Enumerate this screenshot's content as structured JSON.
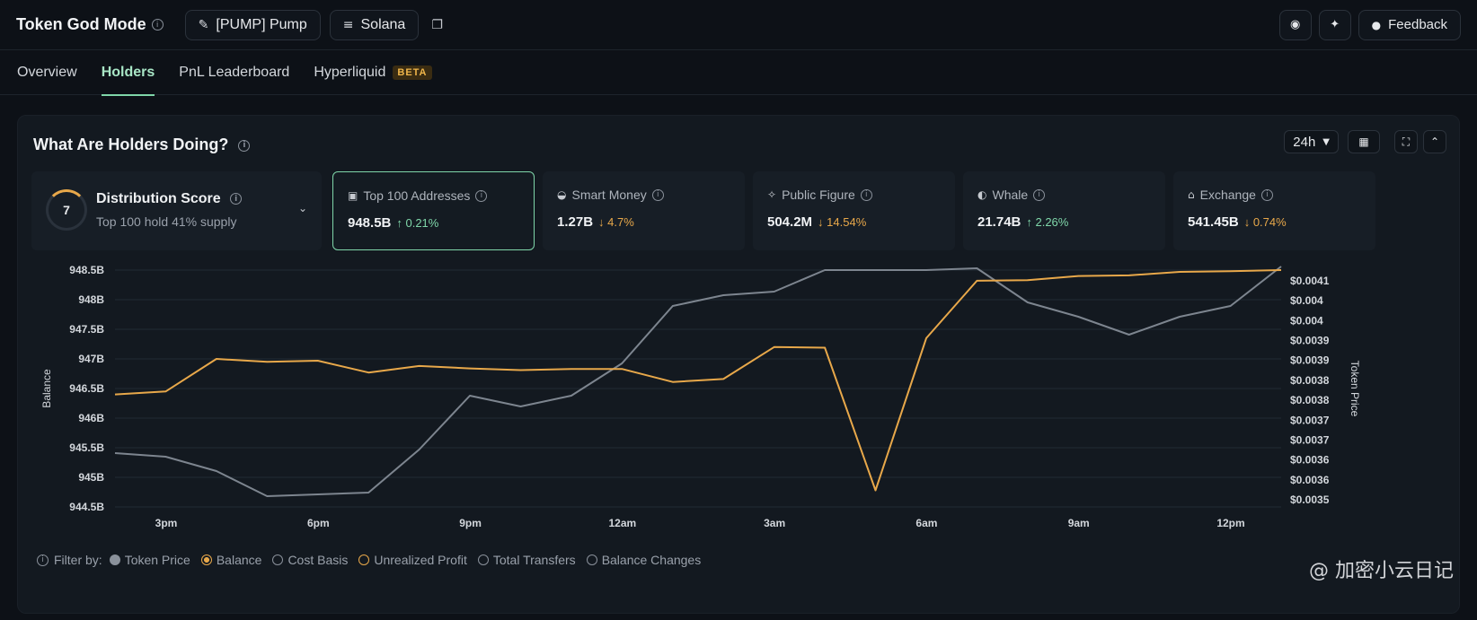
{
  "header": {
    "title": "Token God Mode",
    "token_label": "[PUMP] Pump",
    "chain_label": "Solana",
    "feedback_label": "Feedback"
  },
  "tabs": [
    {
      "label": "Overview"
    },
    {
      "label": "Holders"
    },
    {
      "label": "PnL Leaderboard"
    },
    {
      "label": "Hyperliquid",
      "badge": "BETA"
    }
  ],
  "panel": {
    "title": "What Are Holders Doing?",
    "timeframe": "24h"
  },
  "distribution": {
    "score": "7",
    "title": "Distribution Score",
    "subtitle": "Top 100 hold 41% supply"
  },
  "cards": [
    {
      "label": "Top 100 Addresses",
      "value": "948.5B",
      "change": "↑ 0.21%",
      "direction": "up",
      "icon": "wallet-icon"
    },
    {
      "label": "Smart Money",
      "value": "1.27B",
      "change": "↓ 4.7%",
      "direction": "down",
      "icon": "smart-money-icon"
    },
    {
      "label": "Public Figure",
      "value": "504.2M",
      "change": "↓ 14.54%",
      "direction": "down",
      "icon": "public-figure-icon"
    },
    {
      "label": "Whale",
      "value": "21.74B",
      "change": "↑ 2.26%",
      "direction": "up",
      "icon": "whale-icon"
    },
    {
      "label": "Exchange",
      "value": "541.45B",
      "change": "↓ 0.74%",
      "direction": "down",
      "icon": "exchange-icon"
    }
  ],
  "legend": {
    "prefix": "Filter by:",
    "items": [
      "Token Price",
      "Balance",
      "Cost Basis",
      "Unrealized Profit",
      "Total Transfers",
      "Balance Changes"
    ]
  },
  "watermark": "@ 加密小云日记",
  "chart_data": {
    "type": "line",
    "ylabel": "Balance",
    "y2label": "Token Price",
    "xticks": [
      "3pm",
      "6pm",
      "9pm",
      "12am",
      "3am",
      "6am",
      "9am",
      "12pm"
    ],
    "yticks": [
      "948.5B",
      "948B",
      "947.5B",
      "947B",
      "946.5B",
      "946B",
      "945.5B",
      "945B",
      "944.5B"
    ],
    "ylim": [
      944.5,
      948.5
    ],
    "y2ticks": [
      "$0.0041",
      "$0.004",
      "$0.004",
      "$0.0039",
      "$0.0039",
      "$0.0038",
      "$0.0038",
      "$0.0037",
      "$0.0037",
      "$0.0036",
      "$0.0036",
      "$0.0035"
    ],
    "y2lim": [
      0.00348,
      0.00414
    ],
    "grid": true,
    "colors": {
      "balance": "#e8a84a",
      "token_price": "#7d858f"
    },
    "series": [
      {
        "name": "Balance",
        "values": [
          946.4,
          946.45,
          947.0,
          946.95,
          946.97,
          946.77,
          946.88,
          946.84,
          946.81,
          946.83,
          946.83,
          946.61,
          946.66,
          947.2,
          947.19,
          944.78,
          947.35,
          948.32,
          948.33,
          948.4,
          948.41,
          948.47,
          948.48,
          948.5
        ]
      },
      {
        "name": "Token Price",
        "values": [
          0.00363,
          0.00362,
          0.00358,
          0.00351,
          0.003515,
          0.00352,
          0.00364,
          0.00379,
          0.00376,
          0.00379,
          0.00388,
          0.00404,
          0.00407,
          0.00408,
          0.00414,
          0.00414,
          0.00414,
          0.004145,
          0.00405,
          0.00401,
          0.00396,
          0.00401,
          0.00404,
          0.00415
        ]
      }
    ]
  }
}
